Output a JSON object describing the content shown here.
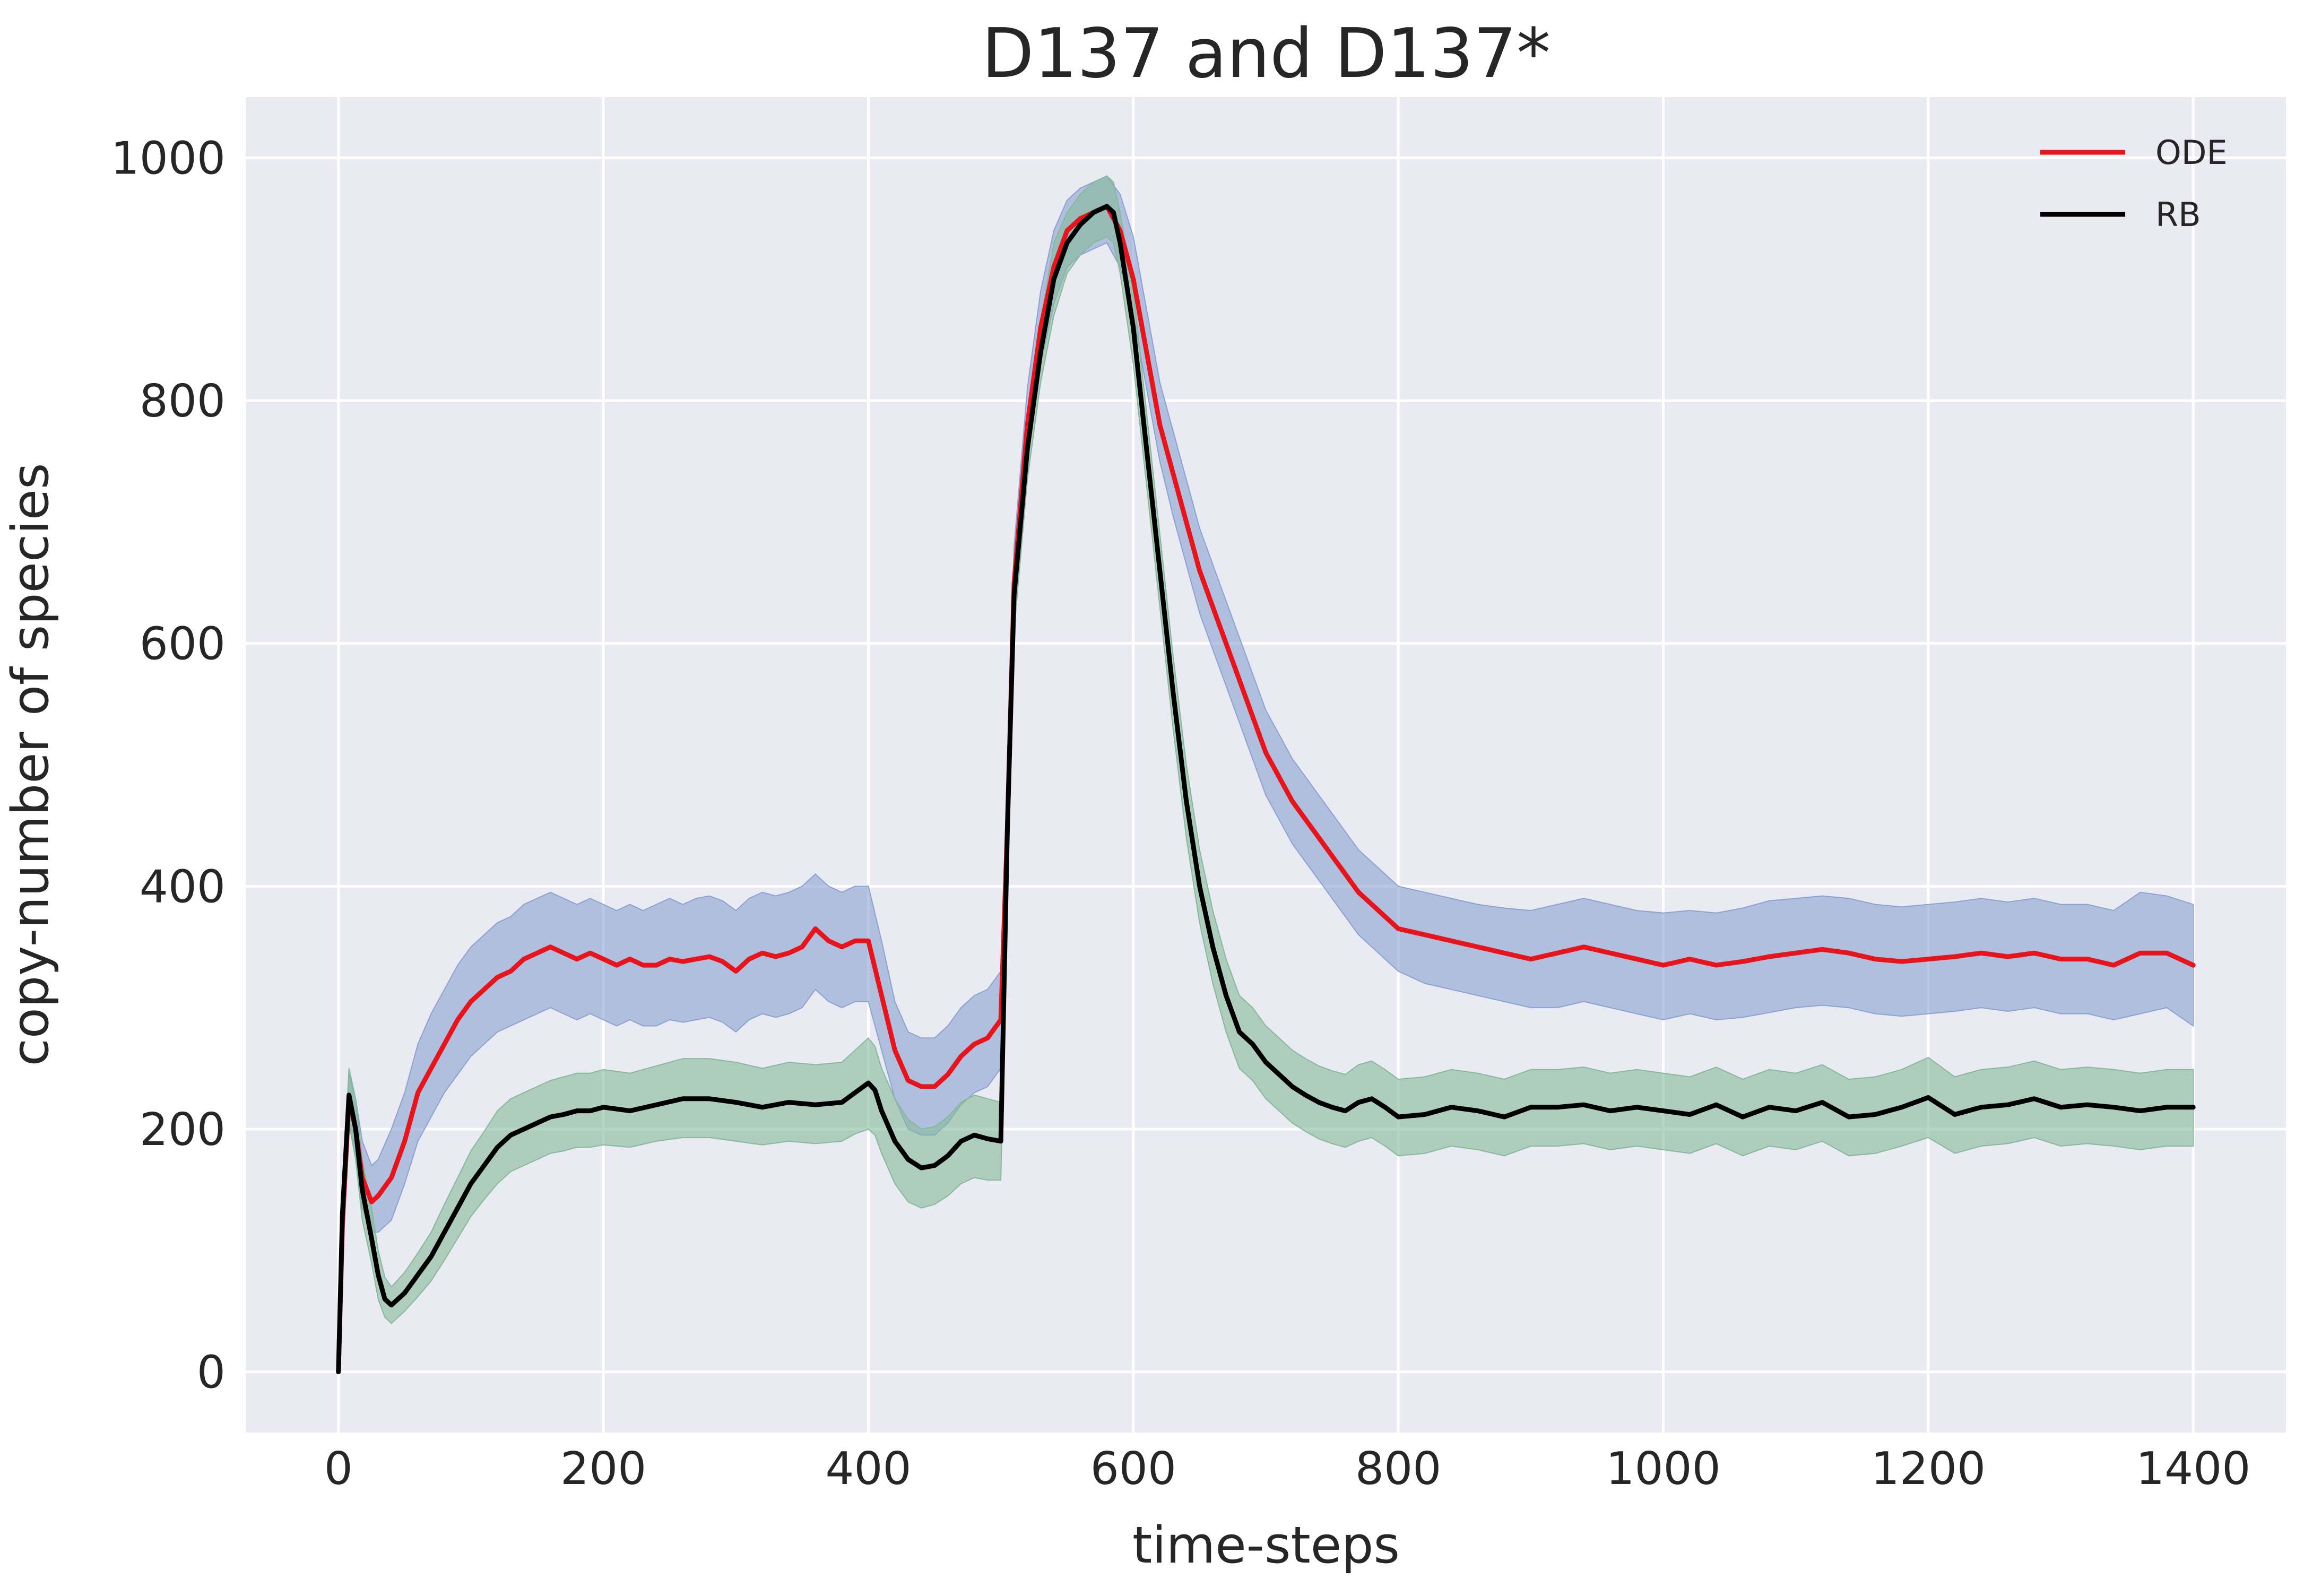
{
  "chart_data": {
    "type": "line",
    "title": "D137 and D137*",
    "xlabel": "time-steps",
    "ylabel": "copy-number of species",
    "xlim": [
      -70,
      1470
    ],
    "ylim": [
      -50,
      1050
    ],
    "xticks": [
      0,
      200,
      400,
      600,
      800,
      1000,
      1200,
      1400
    ],
    "yticks": [
      0,
      200,
      400,
      600,
      800,
      1000
    ],
    "grid": true,
    "legend_position": "top-right",
    "series": [
      {
        "name": "ODE",
        "color": "#e8141c",
        "band_color": "#8aa2d2",
        "x": [
          0,
          3,
          8,
          13,
          18,
          25,
          30,
          40,
          50,
          60,
          70,
          80,
          90,
          100,
          110,
          120,
          130,
          140,
          150,
          160,
          170,
          180,
          190,
          200,
          210,
          220,
          230,
          240,
          250,
          260,
          270,
          280,
          290,
          300,
          310,
          320,
          330,
          340,
          350,
          360,
          370,
          380,
          390,
          400,
          410,
          420,
          430,
          440,
          450,
          460,
          470,
          480,
          490,
          500,
          505,
          510,
          520,
          530,
          540,
          550,
          560,
          570,
          580,
          590,
          600,
          610,
          620,
          630,
          640,
          650,
          660,
          670,
          680,
          690,
          700,
          710,
          720,
          730,
          740,
          750,
          760,
          770,
          780,
          790,
          800,
          820,
          840,
          860,
          880,
          900,
          920,
          940,
          960,
          980,
          1000,
          1020,
          1040,
          1060,
          1080,
          1100,
          1120,
          1140,
          1160,
          1180,
          1200,
          1220,
          1240,
          1260,
          1280,
          1300,
          1320,
          1340,
          1360,
          1380,
          1400
        ],
        "y": [
          0,
          120,
          225,
          200,
          160,
          140,
          145,
          160,
          190,
          230,
          250,
          270,
          290,
          305,
          315,
          325,
          330,
          340,
          345,
          350,
          345,
          340,
          345,
          340,
          335,
          340,
          335,
          335,
          340,
          338,
          340,
          342,
          338,
          330,
          340,
          345,
          342,
          345,
          350,
          365,
          355,
          350,
          355,
          355,
          310,
          265,
          240,
          235,
          235,
          245,
          260,
          270,
          275,
          290,
          450,
          650,
          780,
          860,
          910,
          940,
          950,
          955,
          960,
          940,
          900,
          840,
          780,
          740,
          700,
          660,
          630,
          600,
          570,
          540,
          510,
          490,
          470,
          455,
          440,
          425,
          410,
          395,
          385,
          375,
          365,
          360,
          355,
          350,
          345,
          340,
          345,
          350,
          345,
          340,
          335,
          340,
          335,
          338,
          342,
          345,
          348,
          345,
          340,
          338,
          340,
          342,
          345,
          342,
          345,
          340,
          340,
          335,
          345,
          345,
          335
        ],
        "lower": [
          0,
          100,
          205,
          175,
          135,
          115,
          115,
          125,
          155,
          190,
          210,
          230,
          245,
          260,
          270,
          280,
          285,
          290,
          295,
          300,
          295,
          290,
          295,
          290,
          285,
          290,
          285,
          285,
          290,
          288,
          290,
          292,
          288,
          280,
          290,
          295,
          292,
          295,
          300,
          315,
          305,
          300,
          305,
          305,
          265,
          225,
          200,
          195,
          195,
          205,
          220,
          230,
          235,
          250,
          410,
          620,
          750,
          830,
          880,
          910,
          920,
          925,
          930,
          910,
          870,
          810,
          750,
          705,
          665,
          625,
          595,
          565,
          535,
          505,
          475,
          455,
          435,
          420,
          405,
          390,
          375,
          360,
          350,
          340,
          330,
          320,
          315,
          310,
          305,
          300,
          300,
          305,
          300,
          295,
          290,
          295,
          290,
          292,
          296,
          300,
          302,
          300,
          295,
          293,
          295,
          297,
          300,
          297,
          300,
          295,
          295,
          290,
          295,
          300,
          285
        ],
        "upper": [
          0,
          140,
          245,
          225,
          190,
          170,
          175,
          200,
          230,
          270,
          295,
          315,
          335,
          350,
          360,
          370,
          375,
          385,
          390,
          395,
          390,
          385,
          390,
          385,
          380,
          385,
          380,
          385,
          390,
          385,
          390,
          392,
          388,
          380,
          390,
          395,
          392,
          395,
          400,
          410,
          400,
          395,
          400,
          400,
          355,
          305,
          280,
          275,
          275,
          285,
          300,
          310,
          315,
          330,
          490,
          680,
          810,
          890,
          940,
          965,
          975,
          980,
          985,
          970,
          935,
          875,
          815,
          775,
          735,
          695,
          665,
          635,
          605,
          575,
          545,
          525,
          505,
          490,
          475,
          460,
          445,
          430,
          420,
          410,
          400,
          395,
          390,
          385,
          382,
          380,
          385,
          390,
          385,
          380,
          378,
          380,
          378,
          382,
          388,
          390,
          392,
          390,
          385,
          383,
          385,
          387,
          390,
          387,
          390,
          385,
          385,
          380,
          395,
          392,
          385
        ]
      },
      {
        "name": "RB",
        "color": "#000000",
        "band_color": "#85b99a",
        "x": [
          0,
          3,
          8,
          13,
          18,
          25,
          30,
          35,
          40,
          45,
          50,
          60,
          70,
          80,
          90,
          100,
          110,
          120,
          130,
          140,
          150,
          160,
          170,
          180,
          190,
          200,
          220,
          240,
          260,
          280,
          300,
          320,
          340,
          360,
          380,
          390,
          400,
          405,
          410,
          420,
          430,
          440,
          450,
          460,
          470,
          480,
          490,
          500,
          505,
          510,
          520,
          530,
          540,
          550,
          560,
          570,
          580,
          585,
          590,
          600,
          610,
          620,
          630,
          640,
          650,
          660,
          670,
          680,
          690,
          700,
          710,
          720,
          730,
          740,
          750,
          760,
          770,
          780,
          790,
          800,
          820,
          840,
          860,
          880,
          900,
          920,
          940,
          960,
          980,
          1000,
          1020,
          1040,
          1060,
          1080,
          1100,
          1120,
          1140,
          1160,
          1180,
          1200,
          1220,
          1240,
          1260,
          1280,
          1300,
          1320,
          1340,
          1360,
          1380,
          1400
        ],
        "y": [
          0,
          130,
          228,
          200,
          150,
          110,
          80,
          60,
          55,
          60,
          65,
          80,
          95,
          115,
          135,
          155,
          170,
          185,
          195,
          200,
          205,
          210,
          212,
          215,
          215,
          218,
          215,
          220,
          225,
          225,
          222,
          218,
          222,
          220,
          222,
          230,
          238,
          232,
          215,
          190,
          175,
          168,
          170,
          178,
          190,
          195,
          192,
          190,
          450,
          640,
          760,
          840,
          900,
          930,
          945,
          955,
          960,
          955,
          930,
          860,
          760,
          660,
          560,
          470,
          400,
          350,
          310,
          280,
          270,
          255,
          245,
          235,
          228,
          222,
          218,
          215,
          222,
          225,
          218,
          210,
          212,
          218,
          215,
          210,
          218,
          218,
          220,
          215,
          218,
          215,
          212,
          220,
          210,
          218,
          215,
          222,
          210,
          212,
          218,
          226,
          212,
          218,
          220,
          225,
          218,
          220,
          218,
          215,
          218,
          218
        ],
        "lower": [
          0,
          110,
          205,
          175,
          125,
          90,
          60,
          45,
          40,
          45,
          50,
          62,
          75,
          92,
          110,
          128,
          142,
          155,
          165,
          170,
          175,
          180,
          182,
          185,
          185,
          187,
          185,
          190,
          193,
          193,
          190,
          187,
          190,
          188,
          190,
          196,
          200,
          195,
          180,
          155,
          140,
          135,
          138,
          145,
          155,
          160,
          158,
          158,
          420,
          610,
          735,
          815,
          870,
          905,
          920,
          930,
          935,
          930,
          905,
          830,
          730,
          630,
          530,
          440,
          370,
          320,
          280,
          250,
          240,
          225,
          215,
          205,
          198,
          192,
          188,
          185,
          190,
          193,
          186,
          178,
          180,
          186,
          183,
          178,
          186,
          186,
          188,
          183,
          186,
          183,
          180,
          188,
          178,
          186,
          183,
          190,
          178,
          180,
          186,
          193,
          180,
          186,
          188,
          193,
          186,
          188,
          186,
          183,
          186,
          186
        ],
        "upper": [
          0,
          150,
          250,
          225,
          175,
          135,
          100,
          78,
          70,
          76,
          82,
          98,
          115,
          138,
          160,
          182,
          198,
          215,
          225,
          230,
          235,
          240,
          243,
          246,
          246,
          249,
          246,
          252,
          258,
          258,
          255,
          250,
          255,
          253,
          255,
          265,
          275,
          268,
          250,
          225,
          208,
          200,
          202,
          210,
          222,
          228,
          225,
          222,
          480,
          670,
          785,
          865,
          930,
          955,
          970,
          980,
          985,
          980,
          955,
          890,
          790,
          690,
          590,
          500,
          430,
          380,
          340,
          310,
          300,
          285,
          275,
          265,
          258,
          252,
          248,
          245,
          253,
          256,
          249,
          241,
          243,
          249,
          246,
          241,
          249,
          249,
          251,
          246,
          249,
          246,
          243,
          251,
          241,
          249,
          246,
          253,
          241,
          243,
          249,
          259,
          243,
          249,
          251,
          256,
          249,
          251,
          249,
          246,
          249,
          249
        ]
      }
    ]
  }
}
